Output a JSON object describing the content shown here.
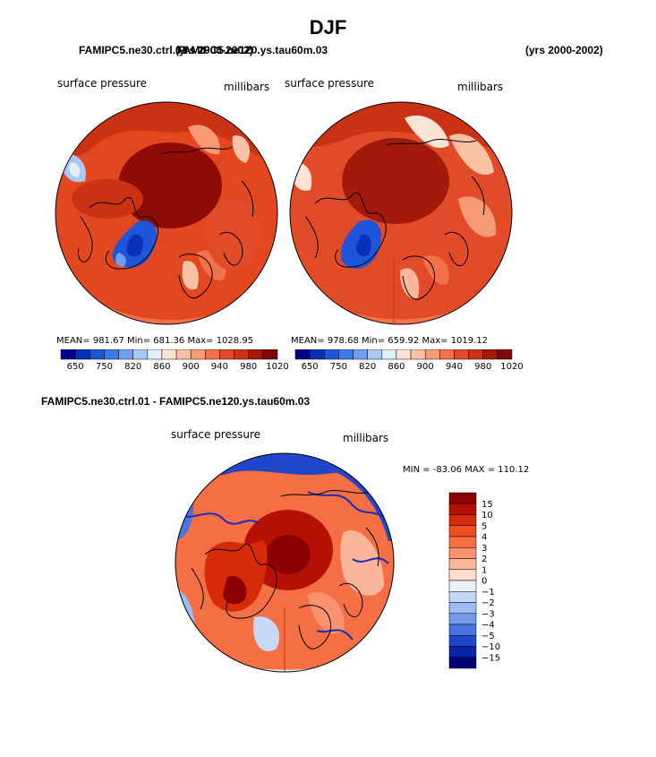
{
  "title": "DJF",
  "header": {
    "left_case": "FAMIPC5.ne30.ctrl.01",
    "left_years": "(yrs 2000-2002)",
    "mid_case": "FAMIPC5.ne120.ys.tau60m.03",
    "right_years": "(yrs 2000-2002)"
  },
  "diff_title": "FAMIPC5.ne30.ctrl.01 - FAMIPC5.ne120.ys.tau60m.03",
  "chart_data": [
    {
      "type": "heatmap",
      "title": "surface pressure",
      "units": "millibars",
      "case": "FAMIPC5.ne30.ctrl.01",
      "stats": {
        "mean": 981.67,
        "min": 681.36,
        "max": 1028.95
      },
      "stats_text": "MEAN= 981.67   Min= 681.36   Max= 1028.95",
      "colorbar_levels": [
        650,
        690,
        750,
        780,
        820,
        840,
        860,
        880,
        900,
        920,
        940,
        960,
        980,
        1000,
        1020
      ],
      "colorbar_labels": [
        "650",
        "750",
        "820",
        "860",
        "900",
        "940",
        "980",
        "1020"
      ]
    },
    {
      "type": "heatmap",
      "title": "surface pressure",
      "units": "millibars",
      "case": "FAMIPC5.ne120.ys.tau60m.03",
      "stats": {
        "mean": 978.68,
        "min": 659.92,
        "max": 1019.12
      },
      "stats_text": "MEAN= 978.68   Min= 659.92   Max= 1019.12",
      "colorbar_levels": [
        650,
        690,
        750,
        780,
        820,
        840,
        860,
        880,
        900,
        920,
        940,
        960,
        980,
        1000,
        1020
      ],
      "colorbar_labels": [
        "650",
        "750",
        "820",
        "860",
        "900",
        "940",
        "980",
        "1020"
      ]
    },
    {
      "type": "heatmap",
      "title": "surface pressure",
      "units": "millibars",
      "case": "FAMIPC5.ne30.ctrl.01 - FAMIPC5.ne120.ys.tau60m.03",
      "stats": {
        "min": -83.06,
        "max": 110.12
      },
      "stats_text": "MIN = -83.06  MAX = 110.12",
      "colorbar_levels": [
        15,
        10,
        5,
        4,
        3,
        2,
        1,
        0,
        -1,
        -2,
        -3,
        -4,
        -5,
        -10,
        -15
      ],
      "colorbar_labels": [
        "15",
        "10",
        "5",
        "4",
        "3",
        "2",
        "1",
        "0",
        "−1",
        "−2",
        "−3",
        "−4",
        "−5",
        "−10",
        "−15"
      ]
    }
  ],
  "colors": {
    "seq_palette": [
      "#00008b",
      "#0a2fb8",
      "#1f55d9",
      "#3b78ea",
      "#6d9ef2",
      "#a9c8f5",
      "#e3eefb",
      "#fbe3d6",
      "#f9c2a5",
      "#f59a74",
      "#f0714a",
      "#e24b27",
      "#c93313",
      "#a11a0a",
      "#7d0606"
    ],
    "div_palette_top_to_bottom": [
      "#8b0000",
      "#b51205",
      "#d72c0a",
      "#ee4d1f",
      "#f56f45",
      "#f9936f",
      "#fbb69b",
      "#fddccb",
      "#eaf1fb",
      "#c5d8f6",
      "#9cbcf1",
      "#7299ea",
      "#4a75e0",
      "#2046c9",
      "#0822a8",
      "#00007a"
    ]
  }
}
